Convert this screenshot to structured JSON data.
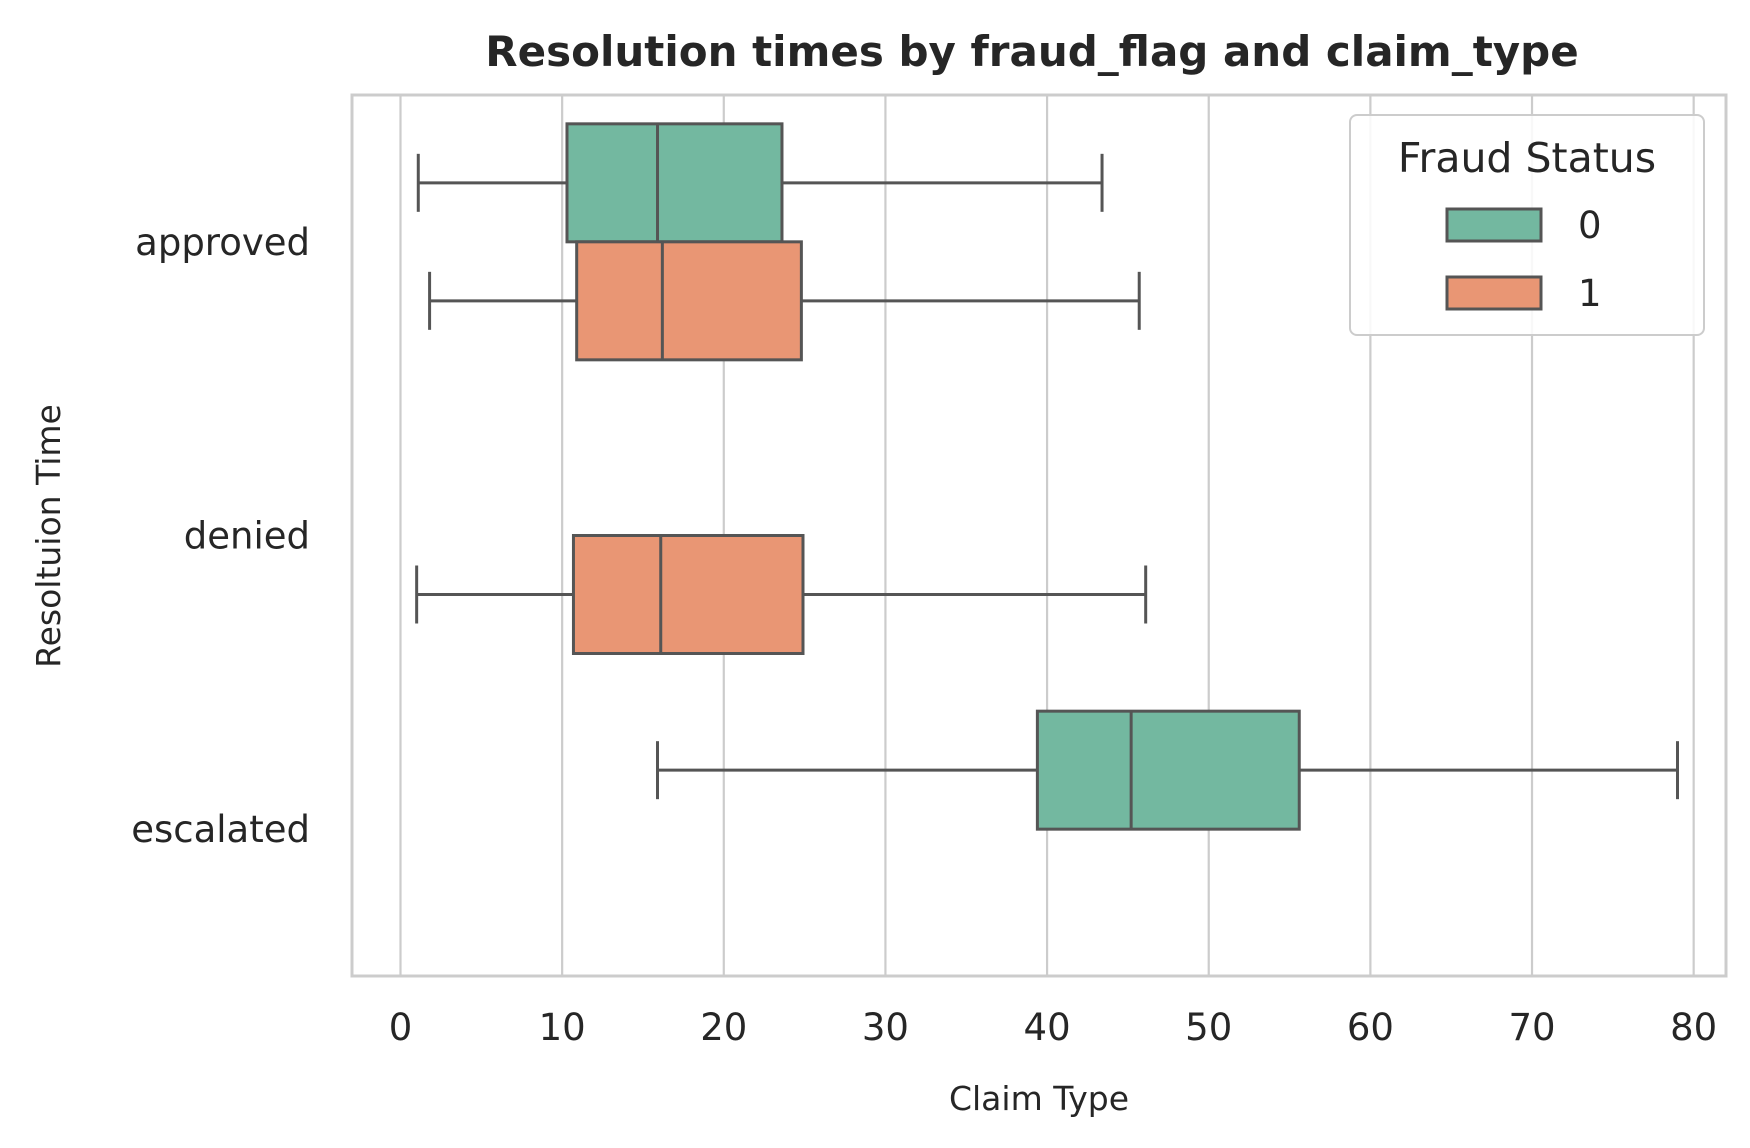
{
  "chart_data": {
    "type": "boxplot",
    "orientation": "horizontal",
    "title": "Resolution times by fraud_flag and claim_type",
    "xlabel": "Claim Type",
    "ylabel": "Resoltuion Time",
    "xlim": [
      -3,
      82
    ],
    "xticks": [
      0,
      10,
      20,
      30,
      40,
      50,
      60,
      70,
      80
    ],
    "categories": [
      "approved",
      "denied",
      "escalated"
    ],
    "grid": "x",
    "legend": {
      "title": "Fraud Status",
      "placement": "top-right",
      "entries": [
        {
          "label": "0",
          "color": "#73b8a0"
        },
        {
          "label": "1",
          "color": "#e99674"
        }
      ]
    },
    "series": [
      {
        "name": "0",
        "color": "#73b8a0",
        "boxes": [
          {
            "category": "approved",
            "whisker_low": 1.1,
            "q1": 10.3,
            "median": 15.9,
            "q3": 23.6,
            "whisker_high": 43.4
          },
          {
            "category": "escalated",
            "whisker_low": 15.9,
            "q1": 39.4,
            "median": 45.2,
            "q3": 55.6,
            "whisker_high": 79.0
          }
        ]
      },
      {
        "name": "1",
        "color": "#e99674",
        "boxes": [
          {
            "category": "approved",
            "whisker_low": 1.8,
            "q1": 10.9,
            "median": 16.2,
            "q3": 24.8,
            "whisker_high": 45.7
          },
          {
            "category": "denied",
            "whisker_low": 1.0,
            "q1": 10.7,
            "median": 16.1,
            "q3": 24.9,
            "whisker_high": 46.1
          }
        ]
      }
    ]
  }
}
